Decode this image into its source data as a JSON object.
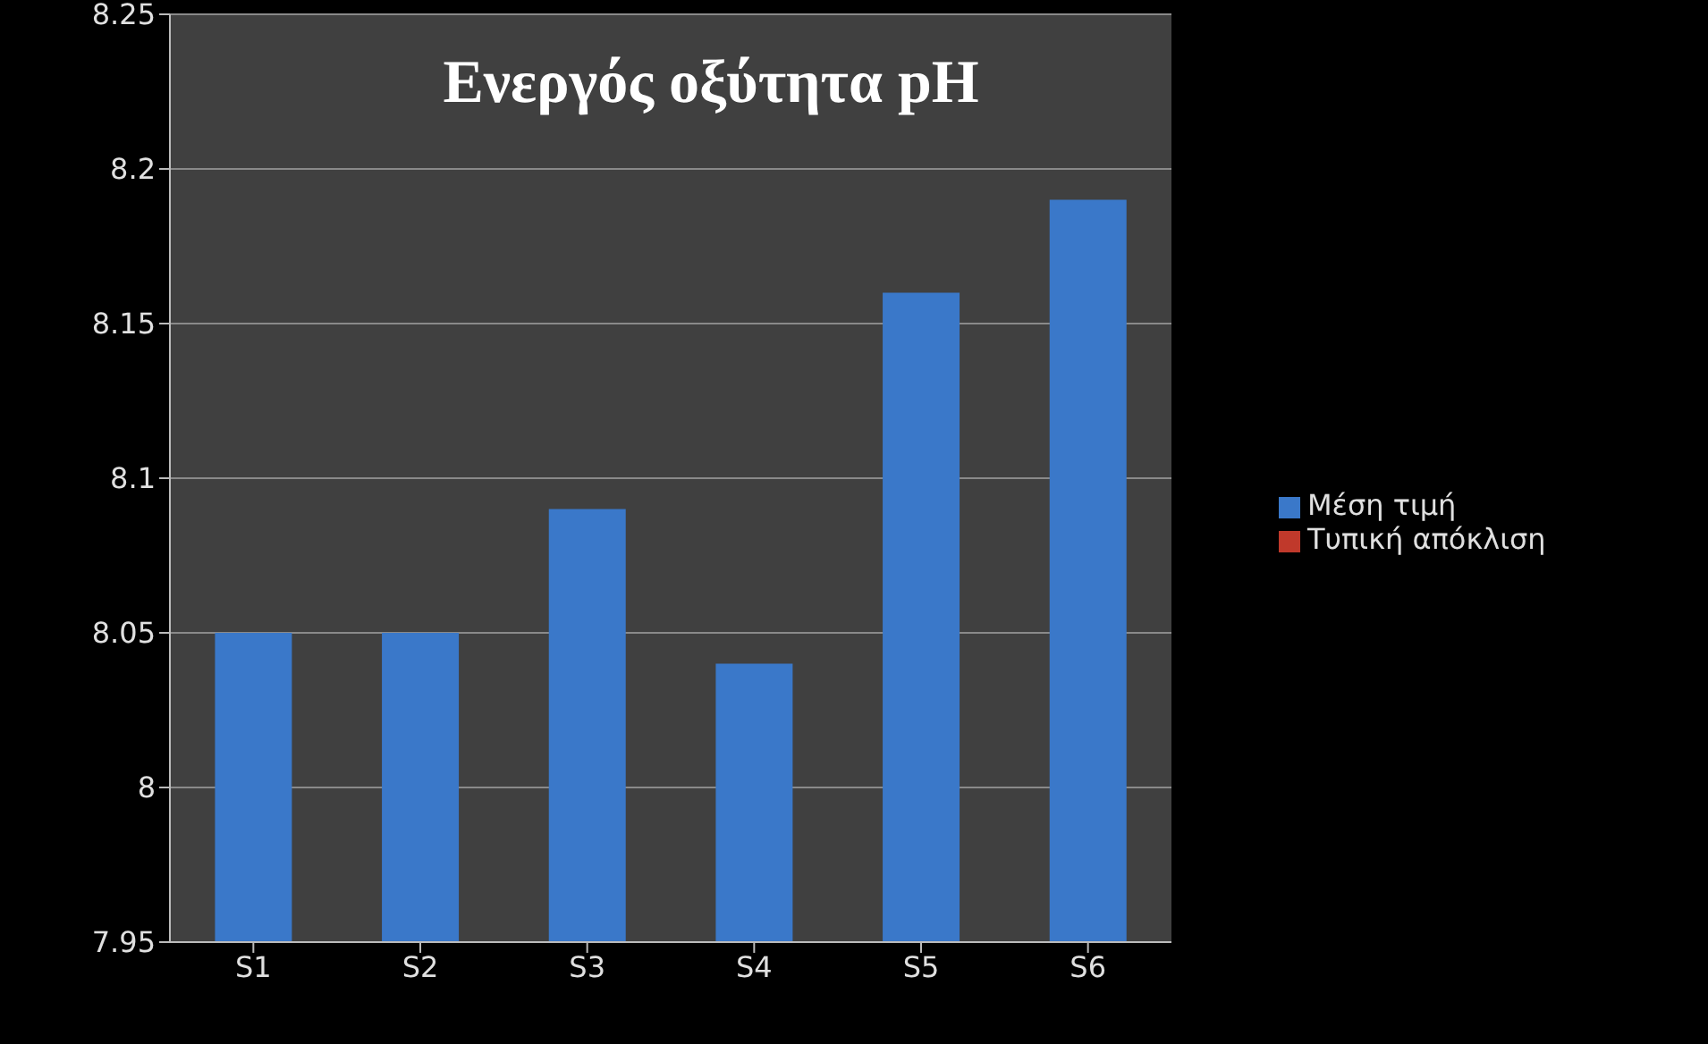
{
  "chart_data": {
    "type": "bar",
    "title": "Ενεργός οξύτητα pH",
    "categories": [
      "S1",
      "S2",
      "S3",
      "S4",
      "S5",
      "S6"
    ],
    "series": [
      {
        "name": "Τυπική απόκλιση",
        "color": "#c0392b",
        "values": [
          null,
          null,
          null,
          null,
          null,
          null
        ]
      },
      {
        "name": "Μέση τιμή",
        "color": "#3a78c9",
        "values": [
          8.05,
          8.05,
          8.09,
          8.04,
          8.16,
          8.19
        ]
      }
    ],
    "stacked": true,
    "ylim": [
      7.95,
      8.25
    ],
    "yticks": [
      7.95,
      8,
      8.05,
      8.1,
      8.15,
      8.2,
      8.25
    ],
    "grid": "y",
    "legend": "right"
  }
}
